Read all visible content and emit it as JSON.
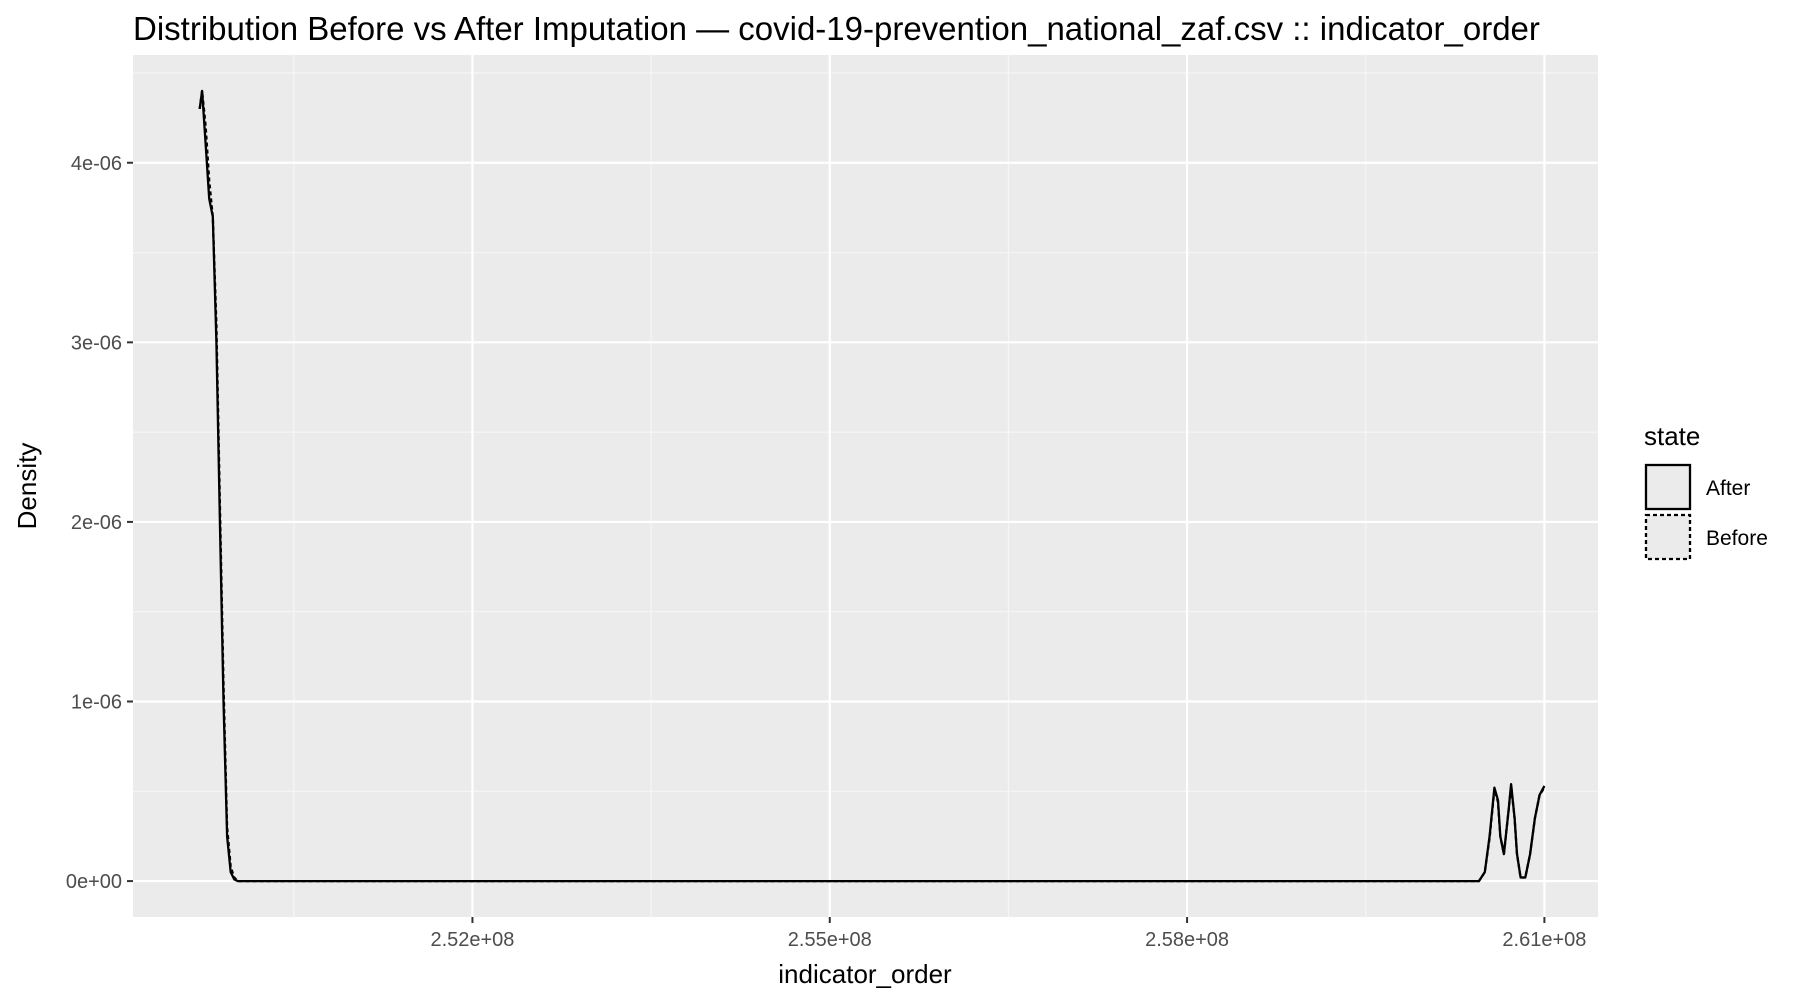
{
  "chart_data": {
    "type": "line",
    "title": "Distribution Before vs After Imputation — covid-19-prevention_national_zaf.csv :: indicator_order",
    "xlabel": "indicator_order",
    "ylabel": "Density",
    "xlim": [
      249150000,
      261450000
    ],
    "ylim": [
      -2e-07,
      4.6e-06
    ],
    "x_ticks": [
      252000000,
      255000000,
      258000000,
      261000000
    ],
    "x_tick_labels": [
      "2.52e+08",
      "2.55e+08",
      "2.58e+08",
      "2.61e+08"
    ],
    "x_minor_ticks": [
      250500000,
      253500000,
      256500000,
      259500000
    ],
    "y_ticks": [
      0,
      1e-06,
      2e-06,
      3e-06,
      4e-06
    ],
    "y_tick_labels": [
      "0e+00",
      "1e-06",
      "2e-06",
      "3e-06",
      "4e-06"
    ],
    "y_minor_ticks": [
      5e-07,
      1.5e-06,
      2.5e-06,
      3.5e-06,
      4.5e-06
    ],
    "grid": true,
    "legend_position": "right",
    "legend_title": "state",
    "series": [
      {
        "name": "After",
        "linetype": "solid",
        "x": [
          249710000,
          249730000,
          249760000,
          249790000,
          249820000,
          249850000,
          249880000,
          249910000,
          249940000,
          249970000,
          250000000,
          250030000,
          250070000,
          250100000,
          250150000,
          250300000,
          251000000,
          254000000,
          257000000,
          260000000,
          260450000,
          260500000,
          260540000,
          260580000,
          260610000,
          260630000,
          260660000,
          260700000,
          260720000,
          260750000,
          260770000,
          260800000,
          260840000,
          260880000,
          260920000,
          260960000,
          261000000
        ],
        "y": [
          4.3e-06,
          4.4e-06,
          4.1e-06,
          3.8e-06,
          3.7e-06,
          3e-06,
          2e-06,
          1e-06,
          2.5e-07,
          5e-08,
          1e-08,
          0,
          0,
          0,
          0,
          0,
          0,
          0,
          0,
          0,
          0,
          5e-08,
          2.5e-07,
          5.2e-07,
          4.5e-07,
          2.5e-07,
          1.5e-07,
          4e-07,
          5.4e-07,
          3.5e-07,
          1.5e-07,
          2e-08,
          2e-08,
          1.5e-07,
          3.5e-07,
          4.8e-07,
          5.3e-07
        ]
      },
      {
        "name": "Before",
        "linetype": "dotted",
        "x": [
          249710000,
          249730000,
          249760000,
          249790000,
          249820000,
          249850000,
          249880000,
          249910000,
          249940000,
          249970000,
          250000000,
          250030000,
          250070000,
          250100000,
          250150000,
          250300000,
          251000000,
          254000000,
          257000000,
          260000000,
          260450000,
          260500000,
          260540000,
          260580000,
          260610000,
          260630000,
          260660000,
          260700000,
          260720000,
          260750000,
          260770000,
          260800000,
          260840000,
          260880000,
          260920000,
          260960000,
          261000000
        ],
        "y": [
          4.3e-06,
          4.4e-06,
          4.2e-06,
          3.9e-06,
          3.7e-06,
          3.1e-06,
          2.1e-06,
          1.1e-06,
          3e-07,
          8e-08,
          2e-08,
          0,
          0,
          0,
          0,
          0,
          0,
          0,
          0,
          0,
          0,
          5e-08,
          2.4e-07,
          5.1e-07,
          4.4e-07,
          2.5e-07,
          1.5e-07,
          4e-07,
          5.3e-07,
          3.5e-07,
          1.5e-07,
          2e-08,
          2e-08,
          1.5e-07,
          3.5e-07,
          4.8e-07,
          5.2e-07
        ]
      }
    ]
  },
  "colors": {
    "panel_background": "#ebebeb",
    "grid_major": "#ffffff",
    "grid_minor": "#f6f6f6",
    "line": "#000000",
    "tick_mark": "#333333",
    "tick_label": "#4d4d4d"
  }
}
